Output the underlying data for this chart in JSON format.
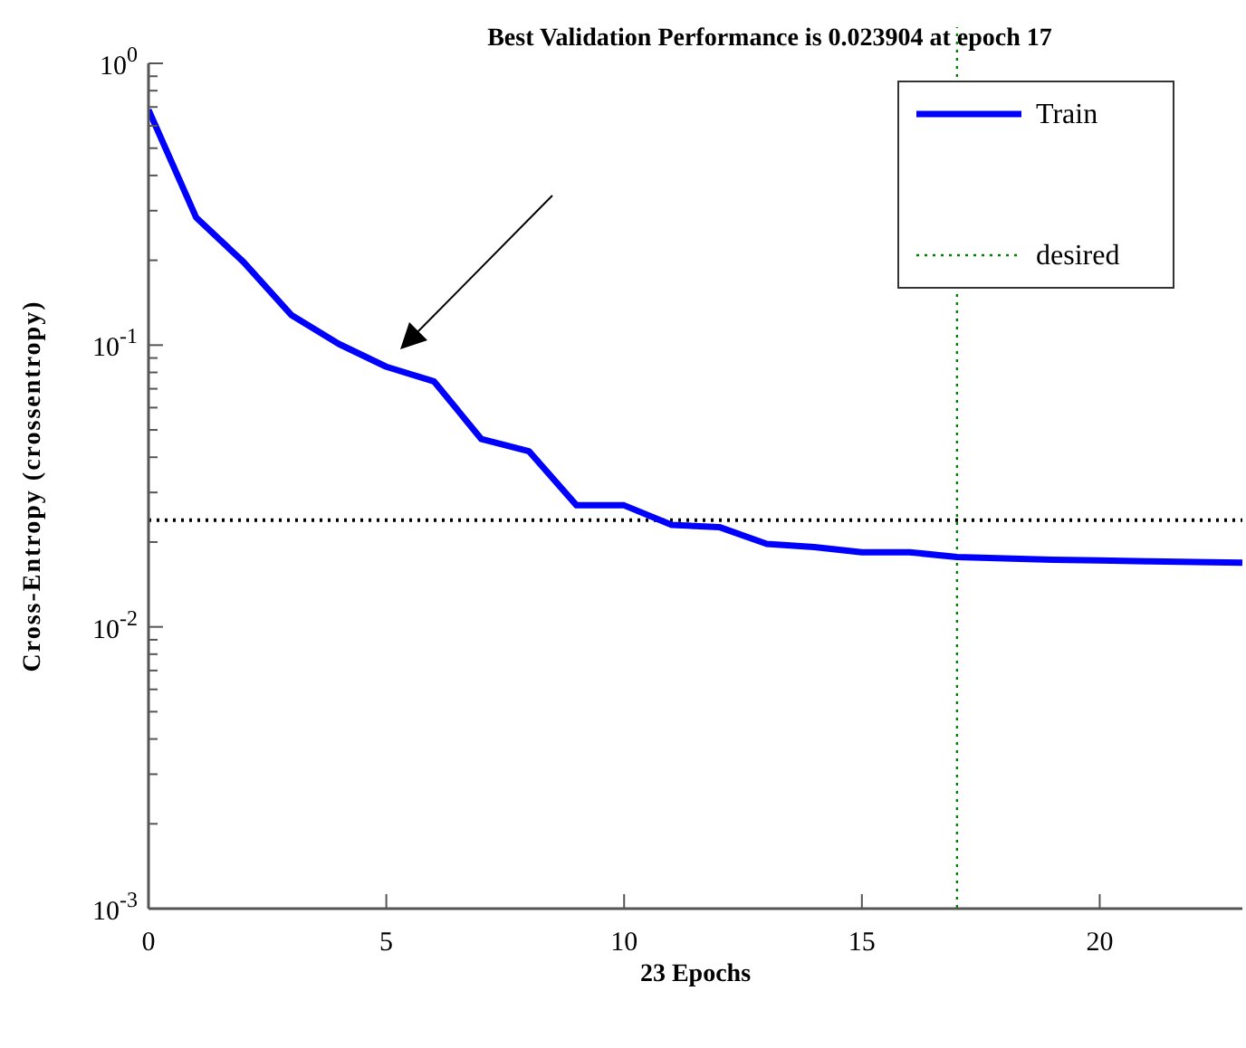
{
  "chart_data": {
    "type": "line",
    "title": "Best Validation Performance is 0.023904 at epoch 17",
    "xlabel": "23 Epochs",
    "ylabel": "Cross-Entropy  (crossentropy)",
    "x": [
      0,
      1,
      2,
      3,
      4,
      5,
      6,
      7,
      8,
      9,
      10,
      11,
      12,
      13,
      14,
      15,
      16,
      17,
      18,
      19,
      20,
      21,
      22,
      23
    ],
    "series": [
      {
        "name": "Train",
        "color": "#0000ff",
        "values": [
          0.684,
          0.284,
          0.197,
          0.128,
          0.101,
          0.0838,
          0.0744,
          0.0464,
          0.042,
          0.027,
          0.027,
          0.023,
          0.0226,
          0.0197,
          0.0192,
          0.0184,
          0.0184,
          0.0177,
          0.0175,
          0.0173,
          0.0172,
          0.0171,
          0.017,
          0.0169
        ]
      }
    ],
    "log": "y",
    "xlim": [
      0,
      23
    ],
    "ylim": [
      0.001,
      1
    ],
    "xticks": [
      0,
      5,
      10,
      15,
      20
    ],
    "yticks": [
      {
        "value": 0.001,
        "label": "10$^{-3}$"
      },
      {
        "value": 0.01,
        "label": "10$^{-2}$"
      },
      {
        "value": 0.1,
        "label": "10$^{-1}$"
      },
      {
        "value": 1,
        "label": "10$^{0}$"
      }
    ],
    "ref_lines": [
      {
        "axis": "y",
        "value": 0.023904,
        "color": "#000000",
        "line_style": "dotted"
      },
      {
        "axis": "x",
        "value": 17,
        "label": "desired",
        "color": "#008000",
        "line_style": "dotted"
      }
    ],
    "grid": false,
    "legend": "top right",
    "marker": "none",
    "line_style": "solid"
  }
}
